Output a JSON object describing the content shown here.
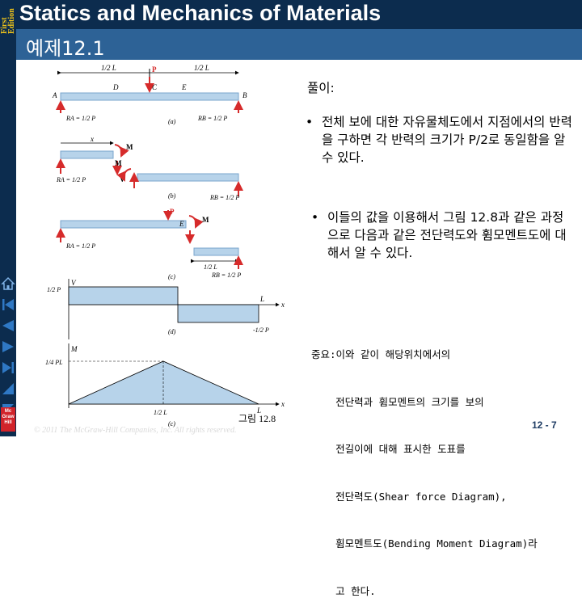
{
  "sidebar": {
    "edition_line1": "First",
    "edition_line2": "Edition",
    "publisher_line1": "Mc",
    "publisher_line2": "Graw",
    "publisher_line3": "Hill"
  },
  "header": {
    "title": "Statics and Mechanics of Materials"
  },
  "slide": {
    "title": "예제12.1"
  },
  "solution": {
    "label": "풀이:",
    "bullet1": "전체 보에 대한 자유물체도에서 지점에서의 반력을 구하면 각 반력의 크기가 P/2로 동일함을 알 수 있다.",
    "bullet2": "이들의 값을 이용해서 그림 12.8과 같은 과정으로 다음과 같은 전단력도와 휨모멘트도에 대해서 알 수 있다.",
    "note_lines": [
      "중요:이와 같이 해당위치에서의",
      "    전단력과 휨모멘트의 크기를 보의",
      "    전길이에 대해 표시한 도표를",
      "    전단력도(Shear force Diagram),",
      "    휨모멘트도(Bending Moment Diagram)라",
      "    고 한다."
    ]
  },
  "figure": {
    "caption": "그림 12.8",
    "copyright": "© 2011 The McGraw-Hill Companies, Inc. All rights reserved.",
    "labels": {
      "half_L": "1/2 L",
      "L": "L",
      "A": "A",
      "B": "B",
      "C": "C",
      "D": "D",
      "E": "E",
      "P": "P",
      "M": "M",
      "V": "V",
      "x": "x",
      "RA": "RA = 1/2 P",
      "RB": "RB = 1/2 P",
      "half_P": "1/2 P",
      "neg_half_P": "-1/2 P",
      "PL": "1/4 PL",
      "half_L_axis": "1/2 L",
      "a": "(a)",
      "b": "(b)",
      "c": "(c)",
      "d": "(d)",
      "e": "(c)"
    }
  },
  "page": {
    "number": "12 - 7"
  },
  "colors": {
    "header_bg": "#0c2c4e",
    "title_bar": "#2d6296",
    "beam": "#b7d3ea",
    "arrow": "#d62b2b",
    "nav": "#2f78c4"
  }
}
